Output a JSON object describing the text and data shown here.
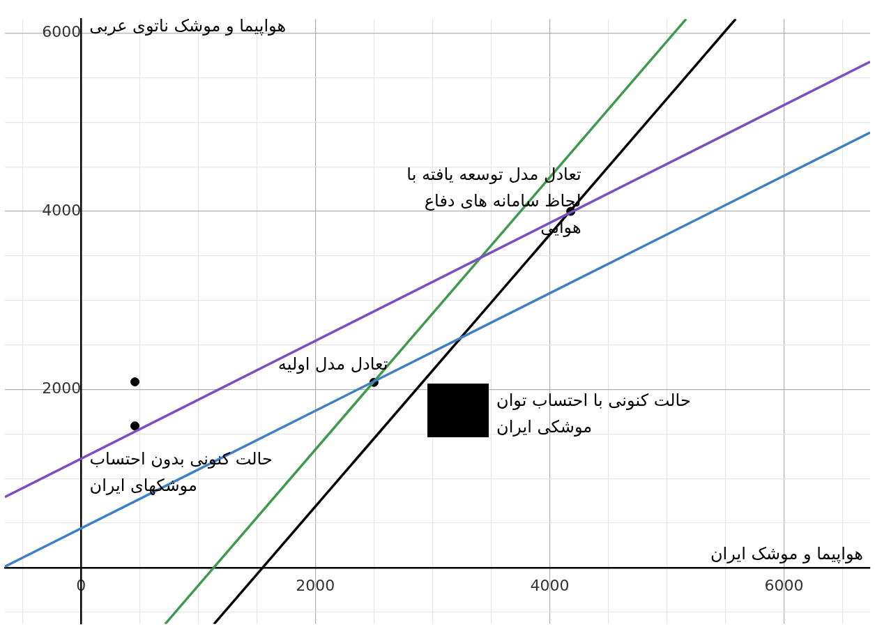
{
  "chart_data": {
    "type": "line",
    "xlabel": "هواپیما و موشک ایران",
    "ylabel": "هواپیما و موشک ناتوی عربی",
    "xlim": [
      -650,
      6735
    ],
    "ylim": [
      -634,
      6160
    ],
    "xticks": [
      {
        "value": -500,
        "label": null
      },
      0,
      {
        "value": 500,
        "label": null
      },
      {
        "value": 1000,
        "label": null
      },
      {
        "value": 1500,
        "label": null
      },
      2000,
      {
        "value": 2500,
        "label": null
      },
      {
        "value": 3000,
        "label": null
      },
      {
        "value": 3500,
        "label": null
      },
      4000,
      {
        "value": 4500,
        "label": null
      },
      {
        "value": 5000,
        "label": null
      },
      {
        "value": 5500,
        "label": null
      },
      6000,
      {
        "value": 6500,
        "label": null
      }
    ],
    "yticks": [
      {
        "value": -500,
        "label": null
      },
      {
        "value": 0,
        "label": null
      },
      {
        "value": 500,
        "label": null
      },
      {
        "value": 1000,
        "label": null
      },
      {
        "value": 1500,
        "label": null
      },
      2000,
      {
        "value": 2500,
        "label": null
      },
      {
        "value": 3000,
        "label": null
      },
      {
        "value": 3500,
        "label": null
      },
      4000,
      {
        "value": 4500,
        "label": null
      },
      {
        "value": 5000,
        "label": null
      },
      {
        "value": 5500,
        "label": null
      },
      6000
    ],
    "grid": true,
    "legend": false,
    "series": [
      {
        "type": "line",
        "color": "#7a4fc0",
        "x": [
          -650,
          6735
        ],
        "values": [
          792,
          5680
        ]
      },
      {
        "type": "line",
        "color": "#3f7fc4",
        "x": [
          -650,
          6735
        ],
        "values": [
          11,
          4885
        ]
      },
      {
        "type": "line",
        "color": "#3f9a4e",
        "x": [
          718,
          5165
        ],
        "values": [
          -634,
          6160
        ]
      },
      {
        "type": "line",
        "color": "#000000",
        "x": [
          1135,
          5588
        ],
        "values": [
          -634,
          6160
        ]
      },
      {
        "type": "scatter",
        "color": "#000000",
        "marker": "circle",
        "x": [
          460,
          460,
          2500,
          4180
        ],
        "values": [
          2085,
          1590,
          2080,
          4000
        ]
      }
    ],
    "annotations": [
      {
        "text": "تعادل مدل اولیه",
        "x": 2500,
        "y": 2080
      },
      {
        "text": "تعادل مدل توسعه یافته با لحاظ سامانه های دفاع هوایی",
        "x": 4180,
        "y": 4000
      },
      {
        "text": "حالت کنونی بدون احتساب موشکهای ایران",
        "x": 460,
        "y": 1590
      },
      "حالت کنونی با احتساب توان موشکی ایران"
    ]
  }
}
